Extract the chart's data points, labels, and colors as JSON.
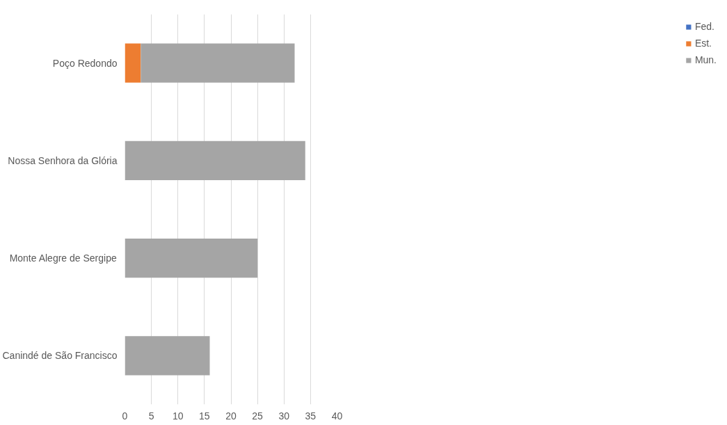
{
  "chart_data": {
    "type": "bar",
    "orientation": "horizontal",
    "stacked": true,
    "categories": [
      "Poço Redondo",
      "Nossa Senhora da Glória",
      "Monte Alegre de Sergipe",
      "Canindé de São Francisco"
    ],
    "series": [
      {
        "name": "Fed.",
        "color": "#4472c4",
        "values": [
          0,
          0,
          0,
          0
        ]
      },
      {
        "name": "Est.",
        "color": "#ed7d31",
        "values": [
          3,
          0,
          0,
          0
        ]
      },
      {
        "name": "Mun.",
        "color": "#a5a5a5",
        "values": [
          29,
          34,
          25,
          16
        ]
      }
    ],
    "xlim": [
      0,
      40
    ],
    "xticks": [
      0,
      5,
      10,
      15,
      20,
      25,
      30,
      35,
      40
    ],
    "grid": "x",
    "legend": "right"
  }
}
